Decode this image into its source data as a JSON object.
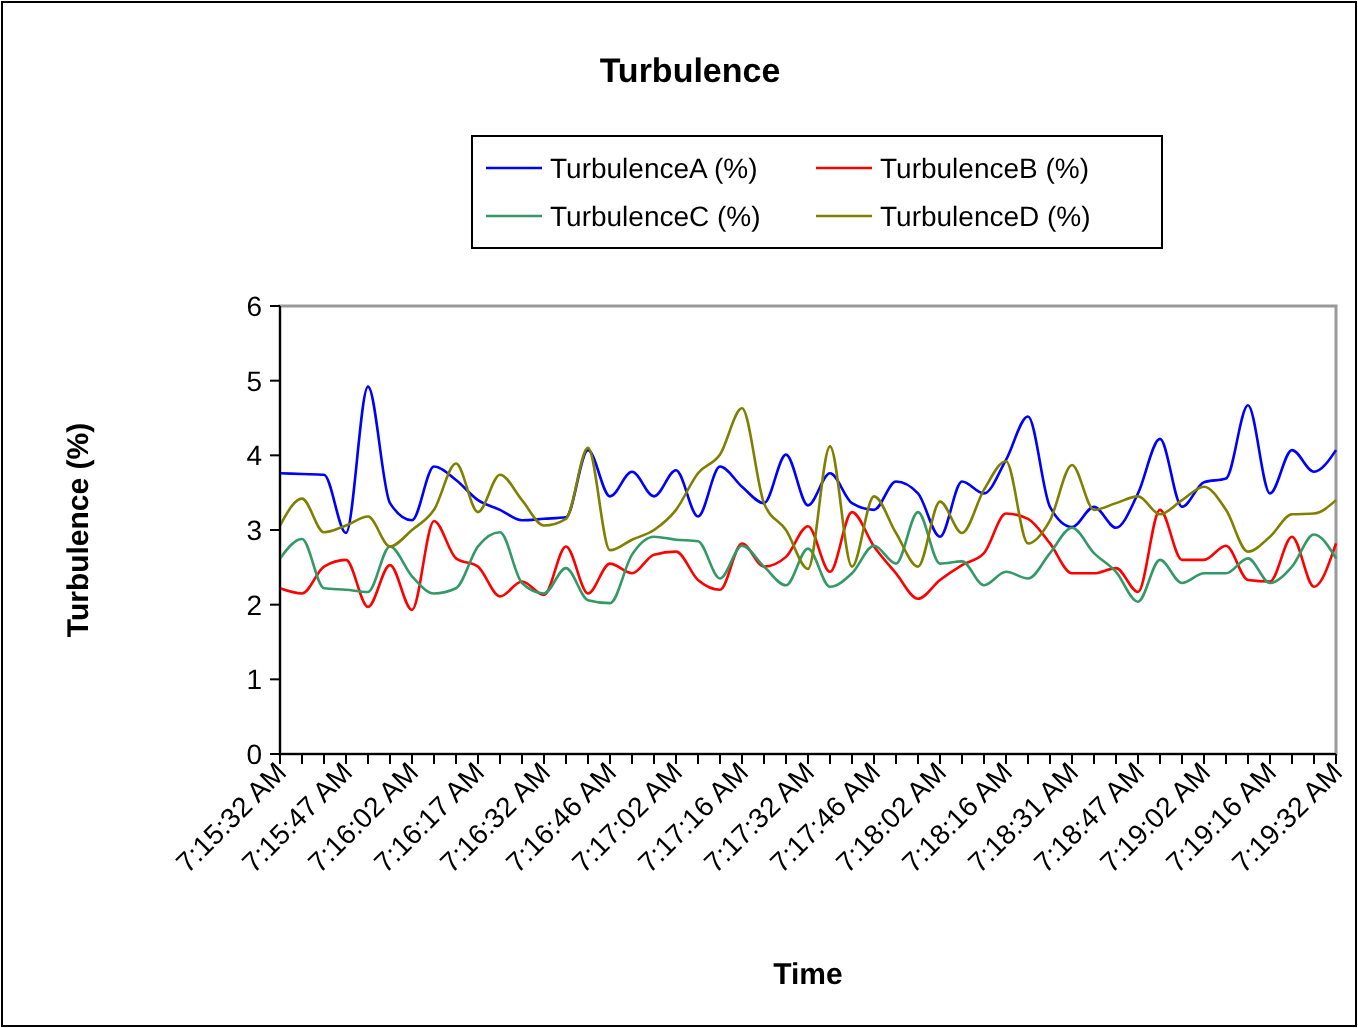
{
  "chart_data": {
    "type": "line",
    "title": "Turbulence",
    "xlabel": "Time",
    "ylabel": "Turbulence (%)",
    "categories": [
      "7:15:32 AM",
      null,
      null,
      "7:15:47 AM",
      null,
      null,
      "7:16:02 AM",
      null,
      null,
      "7:16:17 AM",
      null,
      null,
      "7:16:32 AM",
      null,
      null,
      "7:16:46 AM",
      null,
      null,
      "7:17:02 AM",
      null,
      null,
      "7:17:16 AM",
      null,
      null,
      "7:17:32 AM",
      null,
      null,
      "7:17:46 AM",
      null,
      null,
      "7:18:02 AM",
      null,
      null,
      "7:18:16 AM",
      null,
      null,
      "7:18:31 AM",
      null,
      null,
      "7:18:47 AM",
      null,
      null,
      "7:19:02 AM",
      null,
      null,
      "7:19:16 AM",
      null,
      null,
      "7:19:32 AM"
    ],
    "series": [
      {
        "name": "TurbulenceA (%)",
        "color": "#0000ff",
        "values": [
          3.76,
          3.75,
          3.74,
          2.96,
          4.92,
          3.36,
          3.13,
          3.85,
          3.67,
          3.4,
          3.27,
          3.13,
          3.15,
          3.17,
          4.07,
          3.45,
          3.78,
          3.45,
          3.8,
          3.18,
          3.85,
          3.58,
          3.36,
          4.01,
          3.33,
          3.76,
          3.36,
          3.27,
          3.65,
          3.49,
          2.91,
          3.65,
          3.49,
          3.94,
          4.52,
          3.31,
          3.04,
          3.31,
          3.03,
          3.49,
          4.22,
          3.31,
          3.64,
          3.69,
          4.67,
          3.49,
          4.07,
          3.78,
          4.07
        ]
      },
      {
        "name": "TurbulenceB (%)",
        "color": "#ff0000",
        "values": [
          2.22,
          2.15,
          2.51,
          2.6,
          1.97,
          2.53,
          1.93,
          3.12,
          2.62,
          2.51,
          2.11,
          2.31,
          2.13,
          2.78,
          2.15,
          2.55,
          2.42,
          2.67,
          2.71,
          2.33,
          2.2,
          2.82,
          2.51,
          2.64,
          3.05,
          2.44,
          3.24,
          2.78,
          2.42,
          2.08,
          2.33,
          2.53,
          2.69,
          3.22,
          3.15,
          2.82,
          2.42,
          2.42,
          2.49,
          2.17,
          3.27,
          2.6,
          2.6,
          2.79,
          2.33,
          2.31,
          2.91,
          2.24,
          2.82
        ]
      },
      {
        "name": "TurbulenceC (%)",
        "color": "#339966",
        "values": [
          2.62,
          2.88,
          2.22,
          2.2,
          2.17,
          2.78,
          2.38,
          2.15,
          2.22,
          2.78,
          2.97,
          2.29,
          2.15,
          2.49,
          2.06,
          2.02,
          2.67,
          2.91,
          2.87,
          2.85,
          2.35,
          2.79,
          2.51,
          2.26,
          2.75,
          2.24,
          2.42,
          2.79,
          2.55,
          3.24,
          2.55,
          2.58,
          2.26,
          2.44,
          2.35,
          2.69,
          3.03,
          2.69,
          2.44,
          2.04,
          2.6,
          2.29,
          2.42,
          2.42,
          2.62,
          2.29,
          2.51,
          2.94,
          2.62
        ]
      },
      {
        "name": "TurbulenceD (%)",
        "color": "#808000",
        "values": [
          3.06,
          3.42,
          2.97,
          3.06,
          3.18,
          2.78,
          3.0,
          3.27,
          3.89,
          3.24,
          3.74,
          3.4,
          3.06,
          3.15,
          4.1,
          2.73,
          2.87,
          3.0,
          3.27,
          3.76,
          4.01,
          4.63,
          3.36,
          3.0,
          2.48,
          4.12,
          2.51,
          3.45,
          2.96,
          2.51,
          3.38,
          2.96,
          3.54,
          3.92,
          2.82,
          3.13,
          3.87,
          3.27,
          3.36,
          3.45,
          3.21,
          3.4,
          3.58,
          3.27,
          2.71,
          2.91,
          3.21,
          3.22,
          3.4
        ]
      }
    ],
    "ylim": [
      0,
      6
    ],
    "yticks": [
      0,
      1,
      2,
      3,
      4,
      5,
      6
    ],
    "legend": "top",
    "grid": false
  }
}
